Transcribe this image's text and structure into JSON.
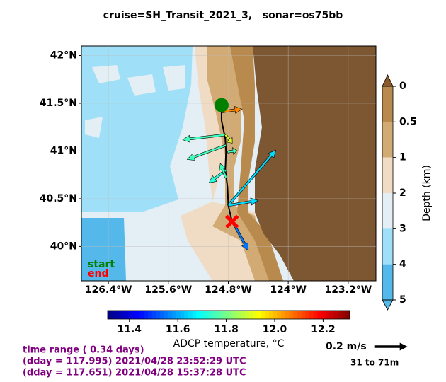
{
  "title": "cruise=SH_Transit_2021_3,   sonar=os75bb",
  "map": {
    "xlim": [
      -126.76,
      -122.83
    ],
    "ylim": [
      39.64,
      42.1
    ],
    "xticks": [
      {
        "value": -126.4,
        "label": "126.4°W"
      },
      {
        "value": -125.6,
        "label": "125.6°W"
      },
      {
        "value": -124.8,
        "label": "124.8°W"
      },
      {
        "value": -124,
        "label": "124°W"
      },
      {
        "value": -123.2,
        "label": "123.2°W"
      }
    ],
    "yticks": [
      {
        "value": 42,
        "label": "42°N"
      },
      {
        "value": 41.5,
        "label": "41.5°N"
      },
      {
        "value": 41,
        "label": "41°N"
      },
      {
        "value": 40.5,
        "label": "40.5°N"
      },
      {
        "value": 40,
        "label": "40°N"
      }
    ],
    "track": {
      "lon": [
        -124.89,
        -124.89,
        -124.84,
        -124.83,
        -124.84,
        -124.81,
        -124.8,
        -124.75
      ],
      "lat": [
        41.48,
        41.32,
        41.13,
        40.99,
        40.8,
        40.62,
        40.43,
        40.26
      ]
    },
    "start": {
      "label": "start",
      "lon": -124.89,
      "lat": 41.48,
      "color": "#008000"
    },
    "end": {
      "label": "end",
      "lon": -124.75,
      "lat": 40.26,
      "color": "#ff0000"
    },
    "vectors": {
      "lon": [
        -124.89,
        -124.84,
        -124.84,
        -124.83,
        -124.81,
        -124.83,
        -124.8,
        -124.8,
        -124.73,
        -124.83
      ],
      "lat": [
        41.41,
        41.17,
        41.17,
        41.06,
        40.99,
        40.8,
        40.43,
        40.43,
        40.24,
        40.72
      ],
      "u": [
        0.129,
        -0.267,
        0.044,
        -0.244,
        0.058,
        -0.107,
        0.298,
        0.187,
        0.093,
        -0.036
      ],
      "v": [
        0.018,
        -0.031,
        -0.053,
        -0.089,
        0.009,
        -0.08,
        0.347,
        0.031,
        -0.169,
        0.089
      ],
      "temp": [
        12.05,
        11.75,
        11.9,
        11.75,
        11.75,
        11.72,
        11.65,
        11.65,
        11.55,
        11.75
      ]
    }
  },
  "depth_colorbar": {
    "label": "Depth (km)",
    "ticks": [
      0,
      0.5,
      1,
      2,
      3,
      4,
      5
    ],
    "colors": [
      "#b88a4e",
      "#d2aa74",
      "#f0dcc4",
      "#e4eef5",
      "#9fe0f8",
      "#54b8ea"
    ]
  },
  "temp_colorbar": {
    "label": "ADCP temperature, °C",
    "clim": [
      11.31,
      12.31
    ],
    "ticks": [
      11.4,
      11.6,
      11.8,
      {
        "value": 12,
        "label": "12.0"
      },
      12.2
    ]
  },
  "scale": {
    "label": "0.2 m/s",
    "value": 0.2,
    "depth_range": "31 to 71m"
  },
  "time_range": [
    "time range ( 0.34 days)",
    "(dday = 117.995) 2021/04/28 23:52:29 UTC",
    "(dday = 117.651) 2021/04/28 15:37:28 UTC"
  ]
}
